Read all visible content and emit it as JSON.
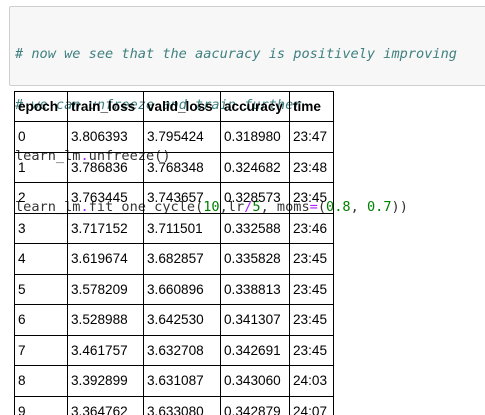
{
  "code_cell": {
    "lines": [
      "# now we see that the aacuracy is positively improving",
      "# we can unfreeze and train further",
      "learn_lm.unfreeze()",
      "learn_lm.fit_one_cycle(10,lr/5, moms=(0.8, 0.7))"
    ],
    "tokens": {
      "obj": "learn_lm",
      "dot": ".",
      "unfreeze_call": "unfreeze()",
      "fit_call_open": "fit_one_cycle(",
      "n_epochs": "10",
      "lr_arg": ",lr",
      "div": "/",
      "five": "5",
      "moms_kw": ", moms",
      "eq": "=",
      "paren_open": "(",
      "m1": "0.8",
      "comma": ", ",
      "m2": "0.7",
      "paren_close": "))"
    }
  },
  "table": {
    "headers": [
      "epoch",
      "train_loss",
      "valid_loss",
      "accuracy",
      "time"
    ],
    "rows": [
      [
        "0",
        "3.806393",
        "3.795424",
        "0.318980",
        "23:47"
      ],
      [
        "1",
        "3.786836",
        "3.768348",
        "0.324682",
        "23:48"
      ],
      [
        "2",
        "3.763445",
        "3.743657",
        "0.328573",
        "23:45"
      ],
      [
        "3",
        "3.717152",
        "3.711501",
        "0.332588",
        "23:46"
      ],
      [
        "4",
        "3.619674",
        "3.682857",
        "0.335828",
        "23:45"
      ],
      [
        "5",
        "3.578209",
        "3.660896",
        "0.338813",
        "23:45"
      ],
      [
        "6",
        "3.528988",
        "3.642530",
        "0.341307",
        "23:45"
      ],
      [
        "7",
        "3.461757",
        "3.632708",
        "0.342691",
        "23:45"
      ],
      [
        "8",
        "3.392899",
        "3.631087",
        "0.343060",
        "24:03"
      ],
      [
        "9",
        "3.364762",
        "3.633080",
        "0.342879",
        "24:07"
      ]
    ]
  },
  "colors": {
    "comment": "#408080",
    "number": "#008000",
    "operator": "#aa22ff",
    "cell_background": "#f7f7f7",
    "cell_border": "#cfcfcf"
  }
}
